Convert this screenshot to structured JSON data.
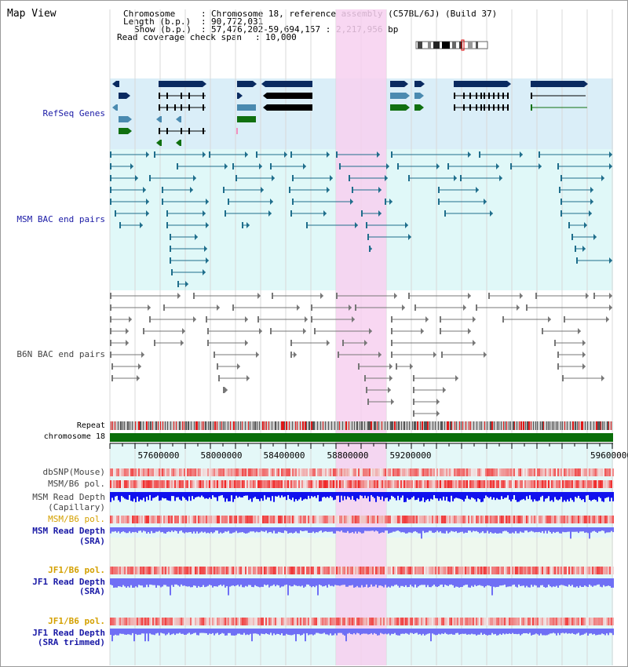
{
  "window": {
    "title": "Map View"
  },
  "info": {
    "chromosome_key": "Chromosome",
    "chromosome_value": "Chromosome 18, reference assembly (C57BL/6J) (Build 37)",
    "length_key": "Length (b.p.)",
    "length_value": "90,772,031",
    "show_key": "Show (b.p.)",
    "show_value": "57,476,202-59,694,157 : 2,217,956 bp",
    "coverage_key": "Read coverage check span",
    "coverage_value": "10,000"
  },
  "tracks": {
    "refseq": "RefSeq Genes",
    "msm_bac": "MSM BAC end pairs",
    "b6n_bac": "B6N BAC end pairs",
    "repeat": "Repeat",
    "chromosome": "chromosome 18",
    "dbsnp": "dbSNP(Mouse)",
    "msm_b6_pol_1": "MSM/B6 pol.",
    "msm_depth_cap_1": "MSM Read Depth",
    "msm_depth_cap_2": "(Capillary)",
    "msm_b6_pol_2": "MSM/B6 pol.",
    "msm_depth_sra_1": "MSM Read Depth",
    "msm_depth_sra_2": "(SRA)",
    "jf1_b6_pol_1": "JF1/B6 pol.",
    "jf1_depth_sra_1": "JF1 Read Depth",
    "jf1_depth_sra_2": "(SRA)",
    "jf1_b6_pol_2": "JF1/B6 pol.",
    "jf1_depth_trim_1": "JF1 Read Depth",
    "jf1_depth_trim_2": "(SRA trimmed)"
  },
  "axis": {
    "ticks": [
      "57600000",
      "58000000",
      "58400000",
      "58800000",
      "59200000",
      "59600000"
    ]
  },
  "colors": {
    "highlight": "#f7d0f0",
    "refseq_bg": "#daeef8",
    "msm_bg": "#e0f8f8",
    "gene_dark": "#0a2a60",
    "gene_mid": "#4a8ab0",
    "gene_green": "#107010",
    "bac_msm": "#1f6e8c",
    "bac_b6n": "#777777",
    "chromosome_bar": "#0a6e0a",
    "depth_blue": "#1111ee",
    "depth_light": "#6f6ff5"
  }
}
